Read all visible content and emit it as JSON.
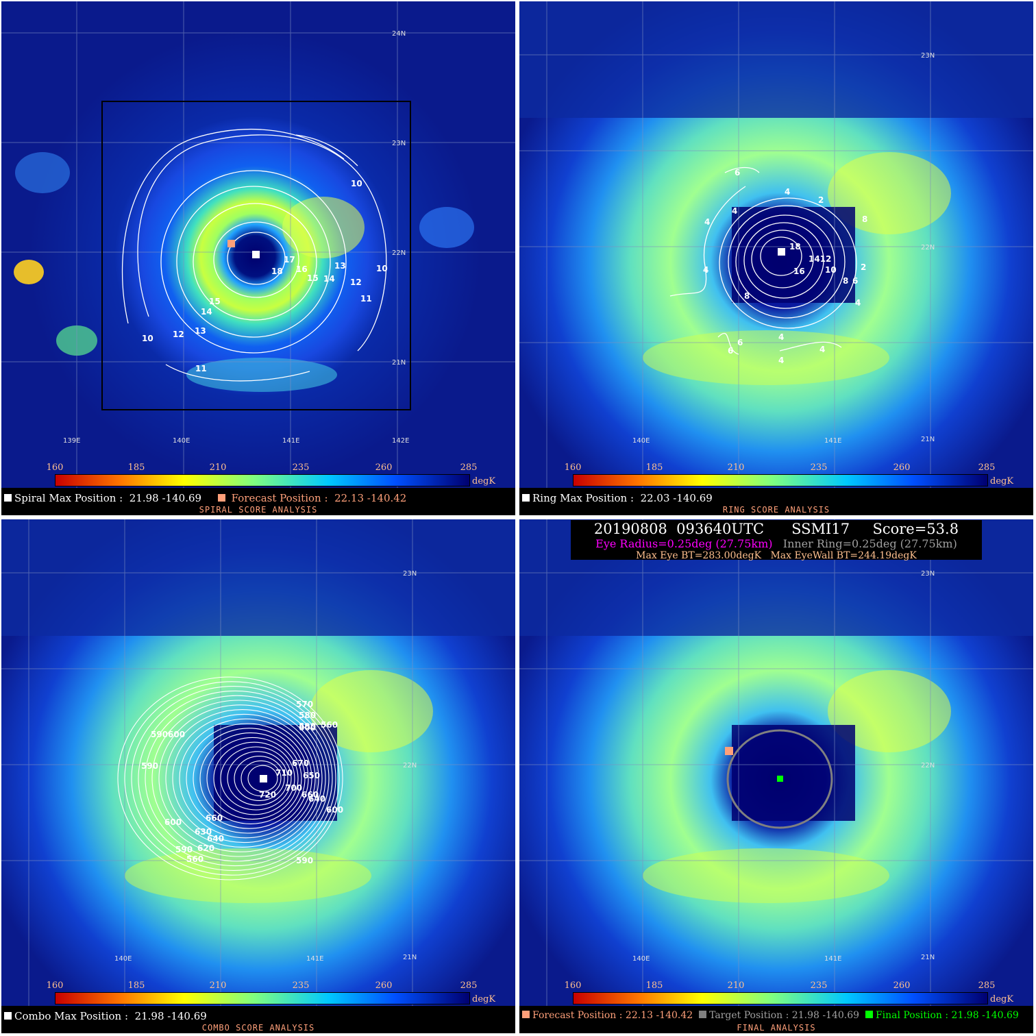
{
  "colorbar": {
    "ticks": [
      "160",
      "185",
      "210",
      "235",
      "260",
      "285"
    ],
    "unit": "degK"
  },
  "panels": {
    "spiral": {
      "title": "SPIRAL SCORE ANALYSIS",
      "max_label": "Spiral Max Position :",
      "max_value": "21.98 -140.69",
      "forecast_label": "Forecast Position :",
      "forecast_value": "22.13 -140.42",
      "lat_labels": [
        "24N",
        "23N",
        "22N",
        "21N"
      ],
      "lon_labels": [
        "139E",
        "140E",
        "141E",
        "142E"
      ],
      "contours": [
        "10",
        "10",
        "10",
        "11",
        "11",
        "12",
        "12",
        "13",
        "13",
        "14",
        "14",
        "15",
        "15",
        "16",
        "17",
        "18"
      ]
    },
    "ring": {
      "title": "RING SCORE ANALYSIS",
      "max_label": "Ring Max Position :",
      "max_value": "22.03 -140.69",
      "lat_labels": [
        "23N",
        "22N",
        "21N"
      ],
      "lon_labels": [
        "140E",
        "141E"
      ],
      "contours": [
        "6",
        "4",
        "2",
        "8",
        "4",
        "4",
        "18",
        "1412",
        "10",
        "16",
        "8",
        "8",
        "6",
        "4",
        "6",
        "6",
        "4",
        "4",
        "4",
        "4",
        "2"
      ]
    },
    "combo": {
      "title": "COMBO SCORE ANALYSIS",
      "max_label": "Combo Max Position :",
      "max_value": "21.98 -140.69",
      "lat_labels": [
        "23N",
        "22N",
        "21N"
      ],
      "lon_labels": [
        "140E",
        "141E"
      ],
      "contours": [
        "570",
        "580",
        "590",
        "600",
        "560",
        "590600",
        "590",
        "670",
        "710",
        "720",
        "700",
        "660",
        "650",
        "640",
        "600",
        "660",
        "600",
        "630",
        "640",
        "620",
        "590",
        "560",
        "590"
      ]
    },
    "final": {
      "title": "FINAL ANALYSIS",
      "header_line1": "20190808  093640UTC      SSMI17     Score=53.8",
      "eye_radius": "Eye Radius=0.25deg (27.75km)",
      "inner_ring": "Inner Ring=0.25deg (27.75km)",
      "max_eye_bt": "Max Eye BT=283.00degK",
      "max_eyewall_bt": "Max EyeWall BT=244.19degK",
      "forecast_label": "Forecast Position : 22.13 -140.42",
      "target_label": "Target Position : 21.98 -140.69",
      "final_label": "Final Position : 21.98 -140.69",
      "lat_labels": [
        "23N",
        "22N",
        "21N"
      ],
      "lon_labels": [
        "140E",
        "141E"
      ]
    }
  },
  "colors": {
    "forecast": "#ffa07a",
    "target": "#808080",
    "final": "#00ff00",
    "eye_radius": "#ff00ff",
    "inner_ring": "#a0a0a0"
  }
}
